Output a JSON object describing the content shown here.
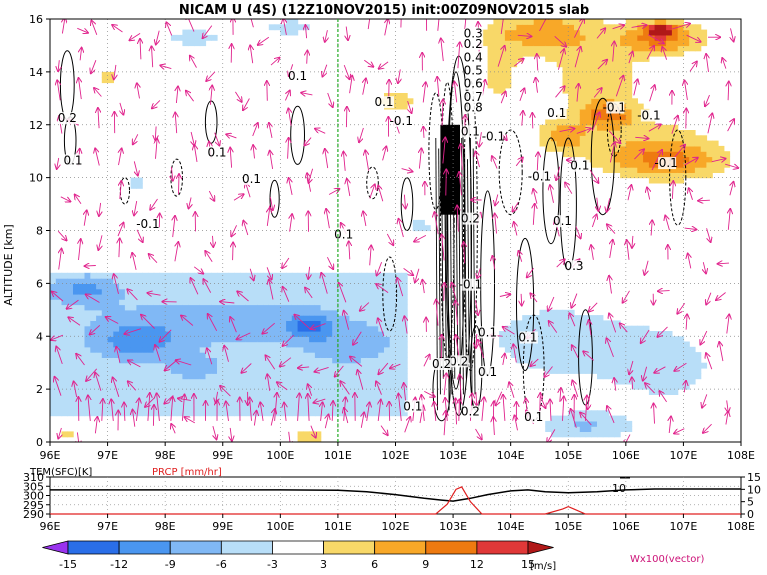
{
  "chart_data": [
    {
      "type": "heatmap",
      "title": "NICAM U (4S) (12Z10NOV2015) init:00Z09NOV2015 slab",
      "ylabel": "ALTITUDE [km]",
      "xlabel": "",
      "xlim": [
        96,
        108
      ],
      "ylim": [
        0,
        16
      ],
      "x_tick_labels": [
        "96E",
        "97E",
        "98E",
        "99E",
        "100E",
        "101E",
        "102E",
        "103E",
        "104E",
        "105E",
        "106E",
        "107E",
        "108E"
      ],
      "y_tick_labels": [
        "0",
        "2",
        "4",
        "6",
        "8",
        "10",
        "12",
        "14",
        "16"
      ],
      "grid": true,
      "vertical_marker_lon": 101,
      "colorbar": {
        "levels": [
          "-15",
          "-12",
          "-9",
          "-6",
          "-3",
          "3",
          "6",
          "9",
          "12",
          "15"
        ],
        "unit": "[m/s]",
        "colors": [
          "#9933ee",
          "#2a6ee8",
          "#4a96f0",
          "#80b8f5",
          "#b8def8",
          "#ffffff",
          "#f8d868",
          "#f8a828",
          "#ee7a10",
          "#e03838",
          "#b01818"
        ]
      },
      "vector_label": "Wx100(vector)",
      "contour_labels": [
        "0.1",
        "0.2",
        "0.3",
        "0.4",
        "0.5",
        "0.6",
        "0.7",
        "0.8",
        "-0.1"
      ],
      "vector_color": "#e0228c"
    },
    {
      "type": "line",
      "xlim": [
        96,
        108
      ],
      "x_tick_labels": [
        "96E",
        "97E",
        "98E",
        "99E",
        "100E",
        "101E",
        "102E",
        "103E",
        "104E",
        "105E",
        "106E",
        "107E",
        "108E"
      ],
      "series": [
        {
          "name": "TEM(SFC)[K]",
          "color": "#000000",
          "axis": "left",
          "x": [
            96,
            97,
            98,
            99,
            100,
            101,
            101.5,
            102,
            102.5,
            102.8,
            103,
            103.3,
            103.6,
            104,
            104.3,
            104.6,
            105,
            105.5,
            106,
            106.5,
            107,
            108
          ],
          "values": [
            303,
            303,
            303,
            303,
            303,
            302.8,
            302,
            300.5,
            298.5,
            297.5,
            297,
            298.5,
            300.5,
            302.5,
            303,
            302,
            301.5,
            302,
            303,
            303.5,
            303.5,
            303.5
          ]
        },
        {
          "name": "PRCP [mm/hr]",
          "color": "#e02020",
          "axis": "right",
          "x": [
            96,
            102.7,
            102.9,
            103.05,
            103.15,
            103.3,
            103.5,
            104.6,
            104.9,
            105,
            105.1,
            105.3,
            108
          ],
          "values": [
            0,
            0,
            4,
            10,
            11,
            5,
            0,
            0,
            2,
            3,
            2,
            0,
            0
          ]
        }
      ],
      "left_axis": {
        "label": "TEM(SFC)[K]",
        "ylim": [
          290,
          310
        ],
        "ticks": [
          "290",
          "295",
          "300",
          "305",
          "310"
        ]
      },
      "right_axis": {
        "label": "PRCP [mm/hr]",
        "ylim": [
          0,
          15
        ],
        "ticks": [
          "0",
          "5",
          "10",
          "15"
        ]
      },
      "annotation": "10"
    }
  ]
}
